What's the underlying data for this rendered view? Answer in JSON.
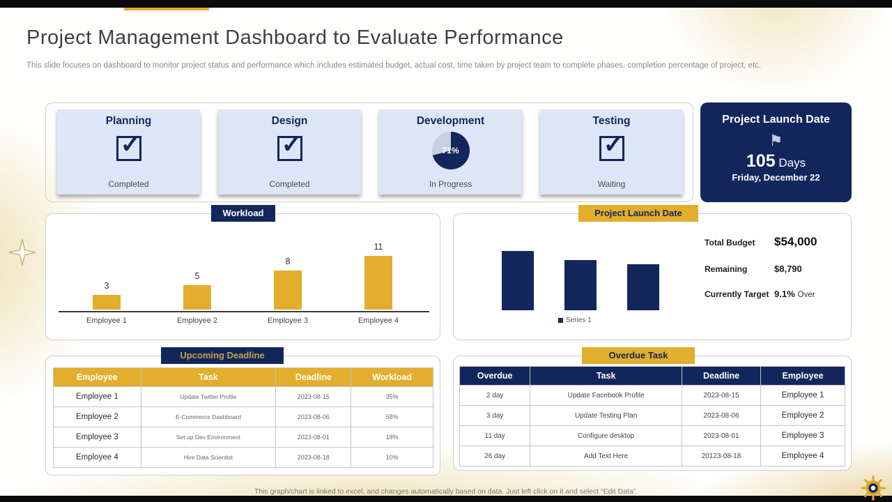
{
  "top": {
    "title": "Project Management Dashboard to Evaluate Performance",
    "subtitle": "This slide focuses on dashboard to monitor project status and performance which includes estimated budget, actual cost, time taken by project team to complete phases, completion percentage of project, etc."
  },
  "icons": {
    "check": "✓",
    "flag": "⚑"
  },
  "colors": {
    "navy": "#13265C",
    "gold": "#E2AE2B",
    "card_blue": "#DCE6F6",
    "pie_remainder": "#C7D0E2"
  },
  "phases": {
    "items": [
      {
        "name": "Planning",
        "status": "Completed",
        "icon": "checkbox-checked"
      },
      {
        "name": "Design",
        "status": "Completed",
        "icon": "checkbox-checked"
      },
      {
        "name": "Development",
        "status": "In Progress",
        "icon": "pie",
        "pie_percent_label": "71%"
      },
      {
        "name": "Testing",
        "status": "Waiting",
        "icon": "checkbox-checked"
      }
    ]
  },
  "launch_card": {
    "title": "Project Launch Date",
    "days": "105",
    "days_unit": "Days",
    "date": "Friday, December 22"
  },
  "workload_panel": {
    "badge": "Workload"
  },
  "budget_panel": {
    "badge": "Project Launch Date",
    "legend": "Series 1",
    "stats": [
      {
        "label": "Total Budget",
        "value": "$54,000"
      },
      {
        "label": "Remaining",
        "value": "$8,790"
      },
      {
        "label": "Currently Target",
        "value": "9.1%",
        "suffix": "Over"
      }
    ]
  },
  "chart_data": [
    {
      "type": "bar",
      "title": "Workload",
      "categories": [
        "Employee 1",
        "Employee 2",
        "Employee 3",
        "Employee 4"
      ],
      "values": [
        3,
        5,
        8,
        11
      ],
      "bar_color": "#E2AE2B",
      "value_labels": true,
      "xlabel": "",
      "ylabel": "",
      "ylim": [
        0,
        12
      ],
      "grid": false
    },
    {
      "type": "bar",
      "title": "Project Launch Date (budget chart)",
      "categories": [
        "",
        "",
        ""
      ],
      "values": [
        10.6,
        9,
        8.2
      ],
      "series": [
        {
          "name": "Series 1",
          "values": [
            10.6,
            9,
            8.2
          ]
        }
      ],
      "bar_color": "#13265C",
      "legend_position": "bottom",
      "note": "axis unlabeled; values estimated from relative bar heights"
    },
    {
      "type": "pie",
      "title": "Development completion",
      "labels": [
        "Complete",
        "Remaining"
      ],
      "values": [
        71,
        29
      ],
      "center_label": "71%",
      "colors": [
        "#13265C",
        "#C7D0E2"
      ]
    }
  ],
  "tables": {
    "upcoming": {
      "badge": "Upcoming Deadline",
      "headers": [
        "Employee",
        "Task",
        "Deadline",
        "Workload"
      ],
      "rows": [
        [
          "Employee 1",
          "Update  Twitter Profile",
          "2023-08-15",
          "35%"
        ],
        [
          "Employee 2",
          "E-Commerce Dashboard",
          "2023-08-06",
          "58%"
        ],
        [
          "Employee 3",
          "Set up Dev Environment",
          "2023-08-01",
          "18%"
        ],
        [
          "Employee 4",
          "Hire Data Scientist",
          "2023-08-18",
          "10%"
        ]
      ]
    },
    "overdue": {
      "badge": "Overdue Task",
      "headers": [
        "Overdue",
        "Task",
        "Deadline",
        "Employee"
      ],
      "rows": [
        [
          "2 day",
          "Update Facebook Profile",
          "2023-08-15",
          "Employee 1"
        ],
        [
          "3 day",
          "Update Testing Plan",
          "2023-08-06",
          "Employee 2"
        ],
        [
          "11 day",
          "Configure desktop",
          "2023-08-01",
          "Employee 3"
        ],
        [
          "26 day",
          "Add Text Here",
          "20123-08-18",
          "Employee 4"
        ]
      ]
    }
  },
  "footer": {
    "note": "This graph/chart is linked to excel,  and changes automatically based on data. Just left click on it and select “Edit Data”."
  }
}
